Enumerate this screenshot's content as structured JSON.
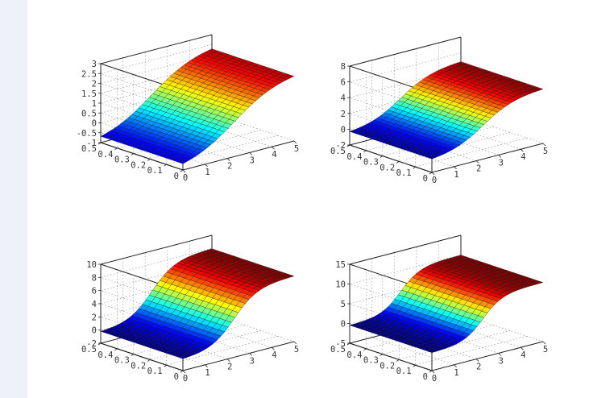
{
  "chart_data": [
    {
      "type": "surface",
      "x": [
        0,
        1,
        2,
        3,
        4,
        5
      ],
      "y": [
        0,
        0.1,
        0.2,
        0.3,
        0.4,
        0.5
      ],
      "xlim": [
        0,
        5
      ],
      "ylim": [
        0,
        0.5
      ],
      "zlim": [
        -1,
        3
      ],
      "x_tick_labels": [
        "0",
        "1",
        "2",
        "3",
        "4",
        "5"
      ],
      "y_tick_labels": [
        "0",
        "0.1",
        "0.2",
        "0.3",
        "0.4",
        "0.5"
      ],
      "z_ticks": [
        -1,
        -0.5,
        0,
        0.5,
        1,
        1.5,
        2,
        2.5,
        3
      ],
      "z_tick_labels": [
        "-1",
        "-0.5",
        "0",
        "0.5",
        "1",
        "1.5",
        "2",
        "2.5",
        "3"
      ],
      "z_min_value": -1,
      "z_max_value": 2.5,
      "steepness": 1.0,
      "colormap": "jet",
      "grid": true
    },
    {
      "type": "surface",
      "x": [
        0,
        1,
        2,
        3,
        4,
        5
      ],
      "y": [
        0,
        0.1,
        0.2,
        0.3,
        0.4,
        0.5
      ],
      "xlim": [
        0,
        5
      ],
      "ylim": [
        0,
        0.5
      ],
      "zlim": [
        -2,
        8
      ],
      "x_tick_labels": [
        "0",
        "1",
        "2",
        "3",
        "4",
        "5"
      ],
      "y_tick_labels": [
        "0",
        "0.1",
        "0.2",
        "0.3",
        "0.4",
        "0.5"
      ],
      "z_ticks": [
        -2,
        0,
        2,
        4,
        6,
        8
      ],
      "z_tick_labels": [
        "-2",
        "0",
        "2",
        "4",
        "6",
        "8"
      ],
      "z_min_value": -0.5,
      "z_max_value": 5,
      "steepness": 1.4,
      "colormap": "jet",
      "grid": true
    },
    {
      "type": "surface",
      "x": [
        0,
        1,
        2,
        3,
        4,
        5
      ],
      "y": [
        0,
        0.1,
        0.2,
        0.3,
        0.4,
        0.5
      ],
      "xlim": [
        0,
        5
      ],
      "ylim": [
        0,
        0.5
      ],
      "zlim": [
        -2,
        10
      ],
      "x_tick_labels": [
        "0",
        "1",
        "2",
        "3",
        "4",
        "5"
      ],
      "y_tick_labels": [
        "0",
        "0.1",
        "0.2",
        "0.3",
        "0.4",
        "0.5"
      ],
      "z_ticks": [
        -2,
        0,
        2,
        4,
        6,
        8,
        10
      ],
      "z_tick_labels": [
        "-2",
        "0",
        "2",
        "4",
        "6",
        "8",
        "10"
      ],
      "z_min_value": -0.3,
      "z_max_value": 8,
      "steepness": 1.9,
      "colormap": "jet",
      "grid": true
    },
    {
      "type": "surface",
      "x": [
        0,
        1,
        2,
        3,
        4,
        5
      ],
      "y": [
        0,
        0.1,
        0.2,
        0.3,
        0.4,
        0.5
      ],
      "xlim": [
        0,
        5
      ],
      "ylim": [
        0,
        0.5
      ],
      "zlim": [
        -5,
        15
      ],
      "x_tick_labels": [
        "0",
        "1",
        "2",
        "3",
        "4",
        "5"
      ],
      "y_tick_labels": [
        "0",
        "0.1",
        "0.2",
        "0.3",
        "0.4",
        "0.5"
      ],
      "z_ticks": [
        -5,
        0,
        5,
        10,
        15
      ],
      "z_tick_labels": [
        "-5",
        "0",
        "5",
        "10",
        "15"
      ],
      "z_min_value": -0.5,
      "z_max_value": 10,
      "steepness": 2.3,
      "colormap": "jet",
      "grid": true
    }
  ]
}
